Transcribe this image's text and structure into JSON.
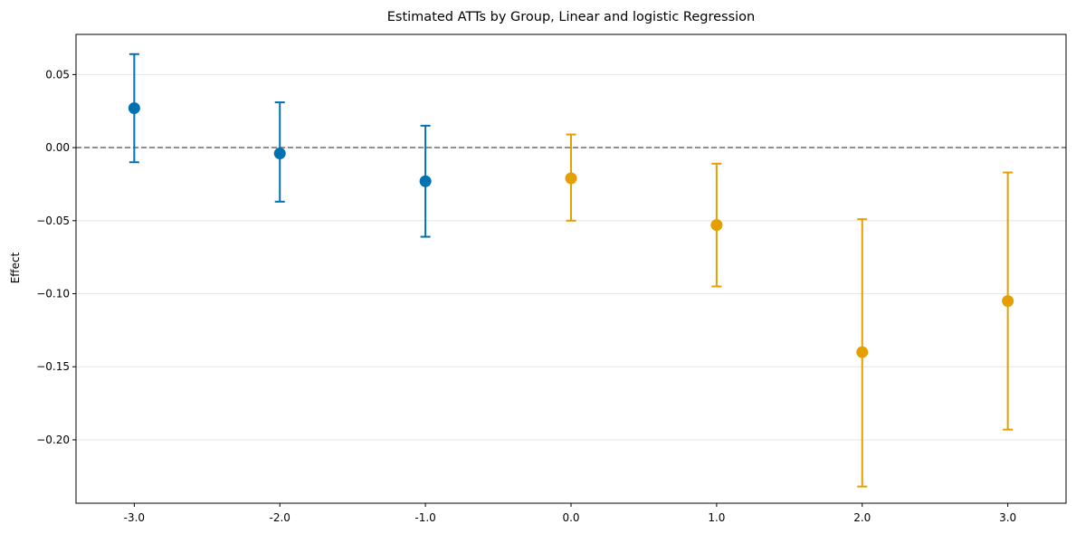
{
  "chart_data": {
    "type": "scatter",
    "title": "Estimated ATTs by Group, Linear and logistic Regression",
    "xlabel": "",
    "ylabel": "Effect",
    "x_tick_labels": [
      "-3.0",
      "-2.0",
      "-1.0",
      "0.0",
      "1.0",
      "2.0",
      "3.0"
    ],
    "y_tick_labels": [
      "0.05",
      "0.00",
      "−0.05",
      "−0.10",
      "−0.15",
      "−0.20"
    ],
    "y_ticks": [
      0.05,
      0.0,
      -0.05,
      -0.1,
      -0.15,
      -0.2
    ],
    "xlim": [
      -3.4,
      3.4
    ],
    "ylim": [
      -0.2434,
      0.0775
    ],
    "grid": "horizontal",
    "reference_line": {
      "y": 0.0,
      "style": "dashed",
      "color": "#777777"
    },
    "colors": {
      "pre": "#0072b2",
      "post": "#e69f00"
    },
    "points": [
      {
        "x": -3,
        "estimate": 0.027,
        "lower": -0.01,
        "upper": 0.064,
        "period": "pre"
      },
      {
        "x": -2,
        "estimate": -0.004,
        "lower": -0.037,
        "upper": 0.031,
        "period": "pre"
      },
      {
        "x": -1,
        "estimate": -0.023,
        "lower": -0.061,
        "upper": 0.015,
        "period": "pre"
      },
      {
        "x": 0,
        "estimate": -0.021,
        "lower": -0.05,
        "upper": 0.009,
        "period": "post"
      },
      {
        "x": 1,
        "estimate": -0.053,
        "lower": -0.095,
        "upper": -0.011,
        "period": "post"
      },
      {
        "x": 2,
        "estimate": -0.14,
        "lower": -0.232,
        "upper": -0.049,
        "period": "post"
      },
      {
        "x": 3,
        "estimate": -0.105,
        "lower": -0.193,
        "upper": -0.017,
        "period": "post"
      }
    ]
  }
}
